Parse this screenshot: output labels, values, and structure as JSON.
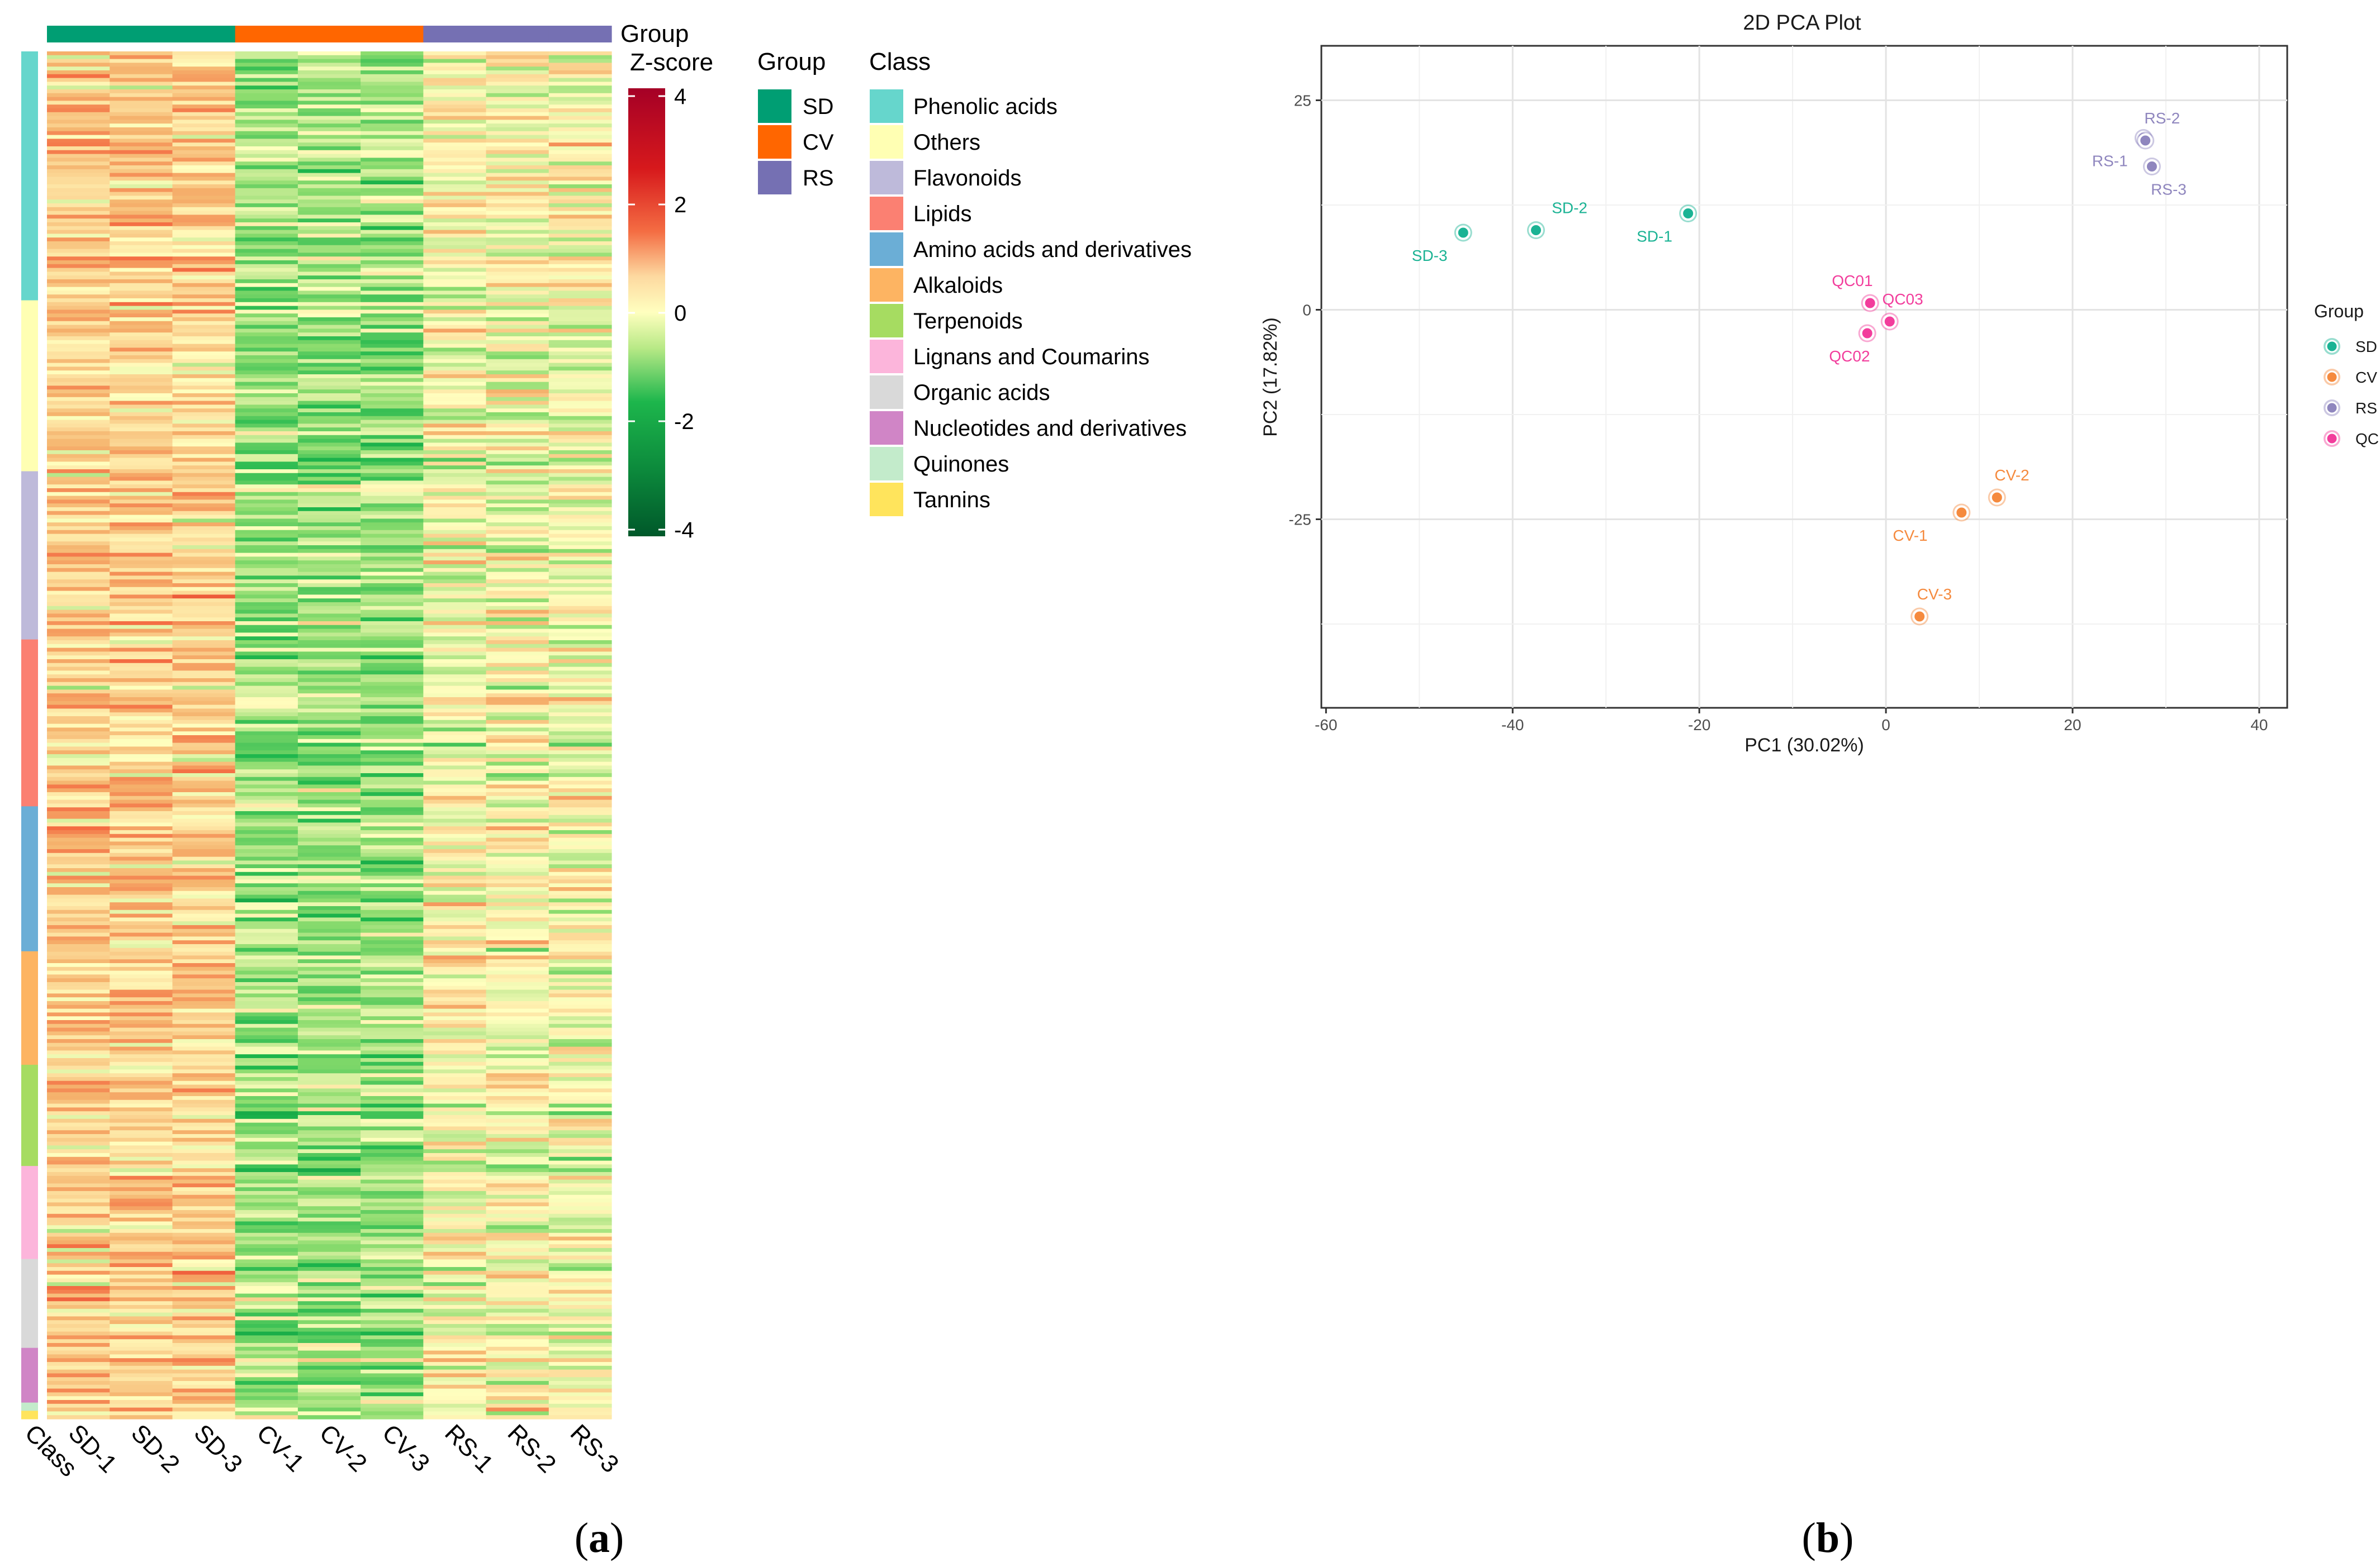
{
  "panels": {
    "a_label": "(a)",
    "b_label": "(b)",
    "a_letter": "a",
    "b_letter": "b"
  },
  "heatmap": {
    "columns": [
      "SD-1",
      "SD-2",
      "SD-3",
      "CV-1",
      "CV-2",
      "CV-3",
      "RS-1",
      "RS-2",
      "RS-3"
    ],
    "class_axis_label": "Class",
    "group_track_label": "Group",
    "column_groups": [
      "SD",
      "SD",
      "SD",
      "CV",
      "CV",
      "CV",
      "RS",
      "RS",
      "RS"
    ],
    "group_bias": {
      "SD": 0.6,
      "CV": -0.7,
      "RS": 0.0
    },
    "zscore": {
      "title": "Z-score",
      "ticks": [
        4,
        2,
        0,
        -2,
        -4
      ],
      "range": [
        -4,
        4
      ]
    },
    "row_class_fractions": [
      [
        "Phenolic acids",
        0.182
      ],
      [
        "Others",
        0.125
      ],
      [
        "Flavonoids",
        0.123
      ],
      [
        "Lipids",
        0.122
      ],
      [
        "Amino acids and derivatives",
        0.106
      ],
      [
        "Alkaloids",
        0.083
      ],
      [
        "Terpenoids",
        0.074
      ],
      [
        "Lignans and Coumarins",
        0.068
      ],
      [
        "Organic acids",
        0.065
      ],
      [
        "Nucleotides and derivatives",
        0.04
      ],
      [
        "Quinones",
        0.006
      ],
      [
        "Tannins",
        0.006
      ]
    ],
    "group_legend": {
      "title": "Group",
      "items": [
        {
          "label": "SD",
          "color": "#009E73"
        },
        {
          "label": "CV",
          "color": "#FF6600"
        },
        {
          "label": "RS",
          "color": "#7570B3"
        }
      ]
    },
    "class_legend": {
      "title": "Class",
      "items": [
        {
          "label": "Phenolic acids",
          "color": "#66D6CC"
        },
        {
          "label": "Others",
          "color": "#FFFFB3"
        },
        {
          "label": "Flavonoids",
          "color": "#BEBADA"
        },
        {
          "label": "Lipids",
          "color": "#FB8072"
        },
        {
          "label": "Amino acids and derivatives",
          "color": "#6BAED6"
        },
        {
          "label": "Alkaloids",
          "color": "#FDB462"
        },
        {
          "label": "Terpenoids",
          "color": "#A6DC61"
        },
        {
          "label": "Lignans and Coumarins",
          "color": "#FCB5DB"
        },
        {
          "label": "Organic acids",
          "color": "#D9D9D9"
        },
        {
          "label": "Nucleotides and derivatives",
          "color": "#D085C6"
        },
        {
          "label": "Quinones",
          "color": "#C3EBCB"
        },
        {
          "label": "Tannins",
          "color": "#FFE45C"
        }
      ]
    }
  },
  "chart_data": {
    "type": "scatter",
    "title": "2D PCA Plot",
    "xlabel": "PC1 (30.02%)",
    "ylabel": "PC2 (17.82%)",
    "xlim": [
      -60.5,
      43
    ],
    "ylim": [
      -47.5,
      31.5
    ],
    "xticks": [
      -60,
      -40,
      -20,
      0,
      20,
      40
    ],
    "yticks": [
      25,
      0,
      -25
    ],
    "grid": true,
    "legend": {
      "title": "Group",
      "position": "right",
      "items": [
        {
          "label": "SD",
          "color": "#1BB394"
        },
        {
          "label": "CV",
          "color": "#F58A3E"
        },
        {
          "label": "RS",
          "color": "#8F86BE"
        },
        {
          "label": "QC",
          "color": "#F23D9C"
        }
      ]
    },
    "series": [
      {
        "name": "SD",
        "color": "#1BB394",
        "points": [
          {
            "label": "SD-1",
            "x": -21.2,
            "y": 11.5,
            "lx": -3.6,
            "ly": -2.7
          },
          {
            "label": "SD-2",
            "x": -37.5,
            "y": 9.5,
            "lx": 3.6,
            "ly": 2.7
          },
          {
            "label": "SD-3",
            "x": -45.3,
            "y": 9.2,
            "lx": -3.6,
            "ly": -2.7
          }
        ]
      },
      {
        "name": "CV",
        "color": "#F58A3E",
        "points": [
          {
            "label": "CV-1",
            "x": 8.1,
            "y": -24.2,
            "lx": -5.5,
            "ly": -2.7
          },
          {
            "label": "CV-2",
            "x": 11.9,
            "y": -22.4,
            "lx": 1.6,
            "ly": 2.7
          },
          {
            "label": "CV-3",
            "x": 3.6,
            "y": -36.6,
            "lx": 1.6,
            "ly": 2.7
          }
        ]
      },
      {
        "name": "RS",
        "color": "#8F86BE",
        "points": [
          {
            "label": "RS-1",
            "x": 27.6,
            "y": 20.5,
            "lx": -3.6,
            "ly": -2.7
          },
          {
            "label": "RS-2",
            "x": 27.8,
            "y": 20.2,
            "lx": 1.8,
            "ly": 2.7
          },
          {
            "label": "RS-3",
            "x": 28.5,
            "y": 17.1,
            "lx": 1.8,
            "ly": -2.7
          }
        ]
      },
      {
        "name": "QC",
        "color": "#F23D9C",
        "points": [
          {
            "label": "QC01",
            "x": -1.7,
            "y": 0.8,
            "lx": -1.9,
            "ly": 2.7
          },
          {
            "label": "QC02",
            "x": -2.0,
            "y": -2.8,
            "lx": -1.9,
            "ly": -2.7
          },
          {
            "label": "QC03",
            "x": 0.4,
            "y": -1.4,
            "lx": 1.4,
            "ly": 2.7
          }
        ]
      }
    ]
  }
}
